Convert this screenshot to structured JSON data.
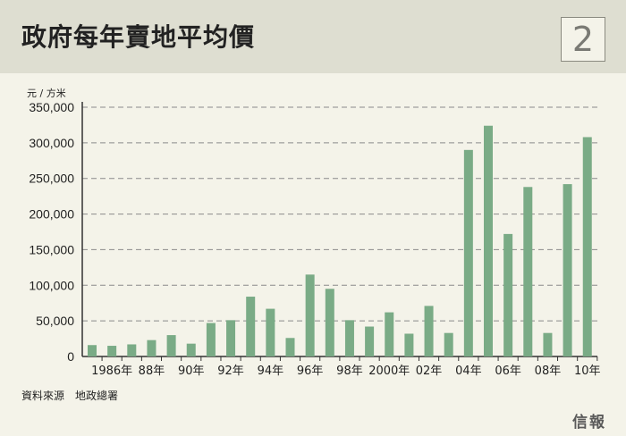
{
  "header": {
    "title": "政府每年賣地平均價",
    "badge": "2"
  },
  "unit_label": "元 / 方米",
  "source": "資料來源　地政總署",
  "logo": "信報",
  "colors": {
    "bar": "#7aab86",
    "header_bg": "#deded1",
    "panel_bg": "#f4f3e9",
    "grid": "#8a8a8a"
  },
  "chart_data": {
    "type": "bar",
    "title": "政府每年賣地平均價",
    "ylabel": "元 / 方米",
    "ylim": [
      0,
      350000
    ],
    "yticks": [
      0,
      50000,
      100000,
      150000,
      200000,
      250000,
      300000,
      350000
    ],
    "ytick_labels": [
      "0",
      "50,000",
      "100,000",
      "150,000",
      "200,000",
      "250,000",
      "300,000",
      "350,000"
    ],
    "grid": true,
    "categories": [
      "1985",
      "1986",
      "1987",
      "1988",
      "1989",
      "1990",
      "1991",
      "1992",
      "1993",
      "1994",
      "1995",
      "1996",
      "1997",
      "1998",
      "1999",
      "2000",
      "2001",
      "2002",
      "2003",
      "2004",
      "2005",
      "2006",
      "2007",
      "2008",
      "2009",
      "2010"
    ],
    "values": [
      16000,
      15000,
      17000,
      23000,
      30000,
      18000,
      47000,
      51000,
      84000,
      67000,
      26000,
      115000,
      95000,
      51000,
      42000,
      62000,
      32000,
      71000,
      33000,
      290000,
      324000,
      172000,
      238000,
      33000,
      242000,
      308000
    ],
    "xtick_labels": [
      {
        "index": 1,
        "label": "1986年"
      },
      {
        "index": 3,
        "label": "88年"
      },
      {
        "index": 5,
        "label": "90年"
      },
      {
        "index": 7,
        "label": "92年"
      },
      {
        "index": 9,
        "label": "94年"
      },
      {
        "index": 11,
        "label": "96年"
      },
      {
        "index": 13,
        "label": "98年"
      },
      {
        "index": 15,
        "label": "2000年"
      },
      {
        "index": 17,
        "label": "02年"
      },
      {
        "index": 19,
        "label": "04年"
      },
      {
        "index": 21,
        "label": "06年"
      },
      {
        "index": 23,
        "label": "08年"
      },
      {
        "index": 25,
        "label": "10年"
      }
    ]
  }
}
